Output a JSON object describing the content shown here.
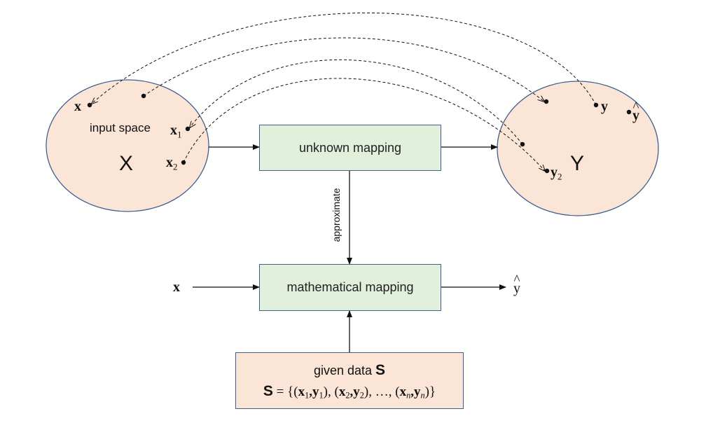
{
  "nodes": {
    "input_space": {
      "label": "input space",
      "set_symbol": "X",
      "points": {
        "x": "x",
        "x1_base": "x",
        "x1_sub": "1",
        "x2_base": "x",
        "x2_sub": "2"
      }
    },
    "output_space": {
      "set_symbol": "Y",
      "points": {
        "y": "y",
        "yhat": "y",
        "y2_base": "y",
        "y2_sub": "2"
      }
    },
    "unknown_mapping": {
      "label": "unknown mapping"
    },
    "mathematical_mapping": {
      "label": "mathematical mapping"
    },
    "given_data": {
      "line1_text": "given data",
      "line1_symbol": "S",
      "line2": {
        "set": "S",
        "eq": " = {(",
        "x1": "x",
        "s1": "1",
        "c1": ",",
        "y1": "y",
        "t1": "1",
        "p1": "), (",
        "x2": "x",
        "s2": "2",
        "c2": ",",
        "y2": "y",
        "t2": "2",
        "p2": "),  …, (",
        "xn": "x",
        "sn": "n",
        "cn": ",",
        "yn": "y",
        "tn": "n",
        "end": ")}"
      }
    }
  },
  "edges": {
    "approximate_label": "approximate",
    "input_x": "x",
    "output_yhat": "y"
  },
  "colors": {
    "ellipse_fill": "#fbe5d6",
    "ellipse_stroke": "#3f5f8f",
    "box_green": "#e2efda",
    "box_peach": "#fbe5d6",
    "box_stroke": "#3f5f8f",
    "arrow": "#111111"
  }
}
